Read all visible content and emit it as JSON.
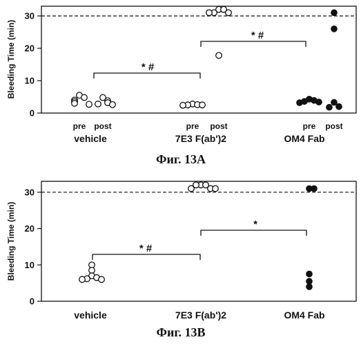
{
  "chart_data": [
    {
      "type": "scatter",
      "caption": "Фиг. 13A",
      "ylabel": "Bleeding Time (min)",
      "ylim": [
        0,
        33
      ],
      "yticks": [
        0,
        10,
        20,
        30
      ],
      "reference_line": 30,
      "groups": [
        "vehicle",
        "7E3 F(ab')2",
        "OM4 Fab"
      ],
      "group_subscript": [
        "",
        "2",
        ""
      ],
      "sublabels": [
        "pre",
        "post"
      ],
      "series": [
        {
          "group": "vehicle",
          "phase": "pre",
          "fill": "open",
          "values": [
            5.5,
            4.8,
            4.0,
            3.5,
            3.0,
            2.7
          ]
        },
        {
          "group": "vehicle",
          "phase": "post",
          "fill": "open",
          "values": [
            4.8,
            3.8,
            3.2,
            2.8,
            2.6
          ]
        },
        {
          "group": "7E3 F(ab')2",
          "phase": "pre",
          "fill": "open",
          "values": [
            2.8,
            2.6,
            2.5,
            2.5,
            2.4
          ]
        },
        {
          "group": "7E3 F(ab')2",
          "phase": "post",
          "fill": "open",
          "values": [
            32,
            32,
            31,
            31,
            31,
            17.8
          ]
        },
        {
          "group": "OM4 Fab",
          "phase": "pre",
          "fill": "filled",
          "values": [
            4.3,
            3.9,
            3.6,
            3.4,
            3.2
          ]
        },
        {
          "group": "OM4 Fab",
          "phase": "post",
          "fill": "filled",
          "values": [
            31,
            26,
            3.3,
            2.0,
            1.8
          ]
        }
      ],
      "significance": [
        {
          "from": "vehicle",
          "to": "7E3 F(ab')2",
          "label": "* #"
        },
        {
          "from": "7E3 F(ab')2",
          "to": "OM4 Fab",
          "label": "* #"
        }
      ]
    },
    {
      "type": "scatter",
      "caption": "Фиг. 13B",
      "ylabel": "Bleeding Time (min)",
      "ylim": [
        0,
        33
      ],
      "yticks": [
        0,
        10,
        20,
        30
      ],
      "reference_line": 30,
      "groups": [
        "vehicle",
        "7E3 F(ab')2",
        "OM4 Fab"
      ],
      "group_subscript": [
        "",
        "2",
        ""
      ],
      "series": [
        {
          "group": "vehicle",
          "fill": "open",
          "values": [
            10,
            8.5,
            7.0,
            6.5,
            6.2,
            6.0,
            6.0
          ]
        },
        {
          "group": "7E3 F(ab')2",
          "fill": "open",
          "values": [
            32,
            32,
            32,
            31,
            31,
            31
          ]
        },
        {
          "group": "OM4 Fab",
          "fill": "filled",
          "values": [
            31,
            31,
            7.5,
            5.5,
            4.0
          ]
        }
      ],
      "significance": [
        {
          "from": "vehicle",
          "to": "7E3 F(ab')2",
          "label": "* #"
        },
        {
          "from": "7E3 F(ab')2",
          "to": "OM4 Fab",
          "label": "*"
        }
      ]
    }
  ]
}
